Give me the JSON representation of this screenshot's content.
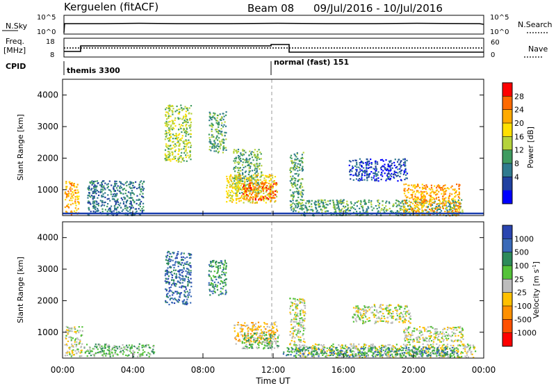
{
  "header": {
    "station": "Kerguelen (fitACF)",
    "beam": "Beam 08",
    "dates": "09/Jul/2016 - 10/Jul/2016"
  },
  "summary_panels": {
    "nsky_label": "N.Sky",
    "nsky_ticks": [
      "10^5",
      "10^0"
    ],
    "nsearch_label": "N.Search",
    "nsearch_ticks": [
      "10^5",
      "10^0"
    ],
    "freq_label_1": "Freq.",
    "freq_label_2": "[MHz]",
    "freq_ticks": [
      "18",
      "8"
    ],
    "nave_label": "Nave",
    "nave_ticks": [
      "60",
      "0"
    ],
    "cpid_label": "CPID",
    "cpid_segments": [
      {
        "name": "themis 3300",
        "start_hour": 0,
        "end_hour": 12
      },
      {
        "name": "normal (fast) 151",
        "start_hour": 12,
        "end_hour": 24
      }
    ]
  },
  "x_axis": {
    "title": "Time UT",
    "ticks": [
      "00:00",
      "04:00",
      "08:00",
      "12:00",
      "16:00",
      "20:00",
      "00:00"
    ]
  },
  "chart_data": [
    {
      "type": "heatmap",
      "name": "power",
      "ylabel": "Slant Range [km]",
      "yticks": [
        "1000",
        "2000",
        "3000",
        "4000"
      ],
      "ylim": [
        180,
        4500
      ],
      "xlim_hours": [
        0,
        24
      ],
      "colorbar_label": "Power [dB]",
      "colorbar_ticks": [
        "28",
        "24",
        "20",
        "16",
        "12",
        "8",
        "4"
      ],
      "colorbar_colors": [
        "#ff0000",
        "#ff6a00",
        "#ffaa00",
        "#ffe000",
        "#b5d33c",
        "#3f9b60",
        "#2f7a8e",
        "#2040a0",
        "#0000ff"
      ],
      "regions": [
        {
          "t0": 0.1,
          "t1": 0.9,
          "r0": 200,
          "r1": 1300,
          "level": 6
        },
        {
          "t0": 1.4,
          "t1": 4.6,
          "r0": 200,
          "r1": 1300,
          "level": 2
        },
        {
          "t0": 5.8,
          "t1": 7.3,
          "r0": 1900,
          "r1": 3700,
          "level": 4
        },
        {
          "t0": 8.3,
          "t1": 9.3,
          "r0": 2200,
          "r1": 3500,
          "level": 3
        },
        {
          "t0": 9.7,
          "t1": 11.3,
          "r0": 900,
          "r1": 2300,
          "level": 3
        },
        {
          "t0": 9.3,
          "t1": 12.2,
          "r0": 600,
          "r1": 1500,
          "level": 5
        },
        {
          "t0": 10.2,
          "t1": 12.2,
          "r0": 700,
          "r1": 1250,
          "level": 7
        },
        {
          "t0": 12.9,
          "t1": 13.7,
          "r0": 400,
          "r1": 2200,
          "level": 3
        },
        {
          "t0": 13.0,
          "t1": 22.8,
          "r0": 200,
          "r1": 700,
          "level": 3
        },
        {
          "t0": 16.3,
          "t1": 19.6,
          "r0": 1300,
          "r1": 2000,
          "level": 1
        },
        {
          "t0": 19.4,
          "t1": 22.6,
          "r0": 200,
          "r1": 1200,
          "level": 6
        }
      ]
    },
    {
      "type": "heatmap",
      "name": "velocity",
      "ylabel": "Slant Range [km]",
      "yticks": [
        "1000",
        "2000",
        "3000",
        "4000"
      ],
      "ylim": [
        180,
        4500
      ],
      "xlim_hours": [
        0,
        24
      ],
      "colorbar_label": "Velocity [m s-1]",
      "colorbar_label_main": "Velocity [m s",
      "colorbar_label_exp": "-1",
      "colorbar_label_end": "]",
      "colorbar_ticks": [
        "1000",
        "500",
        "100",
        "25",
        "-25",
        "-100",
        "-500",
        "-1000"
      ],
      "colorbar_colors": [
        "#2a45b0",
        "#3a6ab8",
        "#2d8a5a",
        "#55c23a",
        "#bcbcbc",
        "#ffc000",
        "#ff9000",
        "#ff5000",
        "#ff0000"
      ],
      "regions": [
        {
          "t0": 0.1,
          "t1": 1.1,
          "r0": 250,
          "r1": 1200,
          "level": 4
        },
        {
          "t0": 1.2,
          "t1": 5.2,
          "r0": 250,
          "r1": 650,
          "level": 5
        },
        {
          "t0": 5.8,
          "t1": 7.3,
          "r0": 1900,
          "r1": 3600,
          "level": 7
        },
        {
          "t0": 8.3,
          "t1": 9.3,
          "r0": 2200,
          "r1": 3300,
          "level": 6
        },
        {
          "t0": 9.7,
          "t1": 12.2,
          "r0": 650,
          "r1": 1350,
          "level": 3
        },
        {
          "t0": 10.2,
          "t1": 12.3,
          "r0": 500,
          "r1": 1000,
          "level": 5
        },
        {
          "t0": 12.9,
          "t1": 13.8,
          "r0": 400,
          "r1": 2100,
          "level": 4
        },
        {
          "t0": 13.2,
          "t1": 23.5,
          "r0": 220,
          "r1": 650,
          "level": 4
        },
        {
          "t0": 16.5,
          "t1": 19.8,
          "r0": 1300,
          "r1": 1900,
          "level": 4
        },
        {
          "t0": 19.4,
          "t1": 22.8,
          "r0": 700,
          "r1": 1200,
          "level": 4
        },
        {
          "t0": 12.5,
          "t1": 22.5,
          "r0": 250,
          "r1": 550,
          "level": 6
        }
      ]
    }
  ]
}
